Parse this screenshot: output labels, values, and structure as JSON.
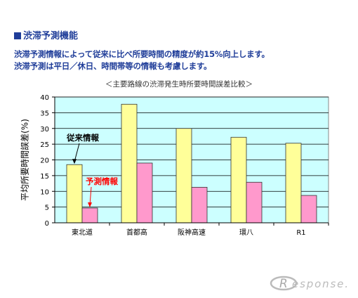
{
  "page": {
    "heading": "渋滞予測機能",
    "description_lines": [
      "渋滞予測情報によって従来に比べ所要時間の精度が約15%向上します。",
      "渋滞予測は平日／休日、時間帯等の情報も考慮します。"
    ],
    "logo_text": "Response."
  },
  "chart_data": {
    "type": "bar",
    "title": "＜主要路線の渋滞発生時所要時間誤差比較＞",
    "xlabel": "",
    "ylabel": "平均所要時間誤差(%)",
    "categories": [
      "東北道",
      "首都高",
      "阪神高速",
      "環八",
      "R1"
    ],
    "series": [
      {
        "name": "従来情報",
        "values": [
          18.5,
          37.7,
          30.0,
          27.2,
          25.3
        ],
        "color": "#ffff99"
      },
      {
        "name": "予測情報",
        "values": [
          4.7,
          19.0,
          11.3,
          12.9,
          8.7
        ],
        "color": "#ff99cc"
      }
    ],
    "ylim": [
      0,
      40
    ],
    "yticks": [
      0,
      5,
      10,
      15,
      20,
      25,
      30,
      35,
      40
    ],
    "plot_background": "#ccffff",
    "grid": true,
    "annotations": [
      {
        "text": "従来情報",
        "series": 0,
        "category": 0,
        "color": "#000000"
      },
      {
        "text": "予測情報",
        "series": 1,
        "category": 0,
        "color": "#ff0000"
      }
    ]
  }
}
